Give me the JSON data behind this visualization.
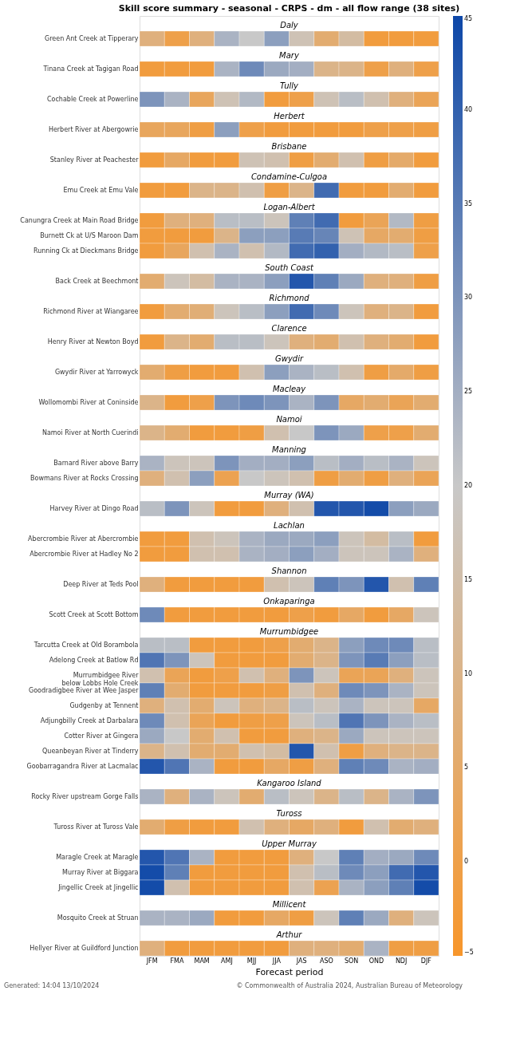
{
  "chart_data": {
    "type": "heatmap",
    "title": "Skill score summary - seasonal - CRPS - dm - all flow range (38 sites)",
    "xlabel": "Forecast period",
    "categories": [
      "JFM",
      "FMA",
      "MAM",
      "AMJ",
      "MJJ",
      "JJA",
      "JAS",
      "ASO",
      "SON",
      "OND",
      "NDJ",
      "DJF"
    ],
    "y_categories": [
      "Daly",
      "Green Ant Creek at Tipperary",
      "Mary",
      "Tinana Creek at Tagigan Road",
      "Tully",
      "Cochable Creek at Powerline",
      "Herbert",
      "Herbert River at Abergowrie",
      "Brisbane",
      "Stanley River at Peachester",
      "Condamine-Culgoa",
      "Emu Creek at Emu Vale",
      "Logan-Albert",
      "Canungra Creek at Main Road Bridge",
      "Burnett Ck at U/S Maroon Dam",
      "Running Ck at Dieckmans Bridge",
      "South Coast",
      "Back Creek at Beechmont",
      "Richmond",
      "Richmond River at Wiangaree",
      "Clarence",
      "Henry River at Newton Boyd",
      "Gwydir",
      "Gwydir River at Yarrowyck",
      "Macleay",
      "Wollomombi River at Coninside",
      "Namoi",
      "Namoi River at North Cuerindi",
      "Manning",
      "Barnard River above Barry",
      "Bowmans River at Rocks Crossing",
      "Murray (WA)",
      "Harvey River at Dingo Road",
      "Lachlan",
      "Abercrombie River at Abercrombie",
      "Abercrombie River at Hadley No 2",
      "Shannon",
      "Deep River at Teds Pool",
      "Onkaparinga",
      "Scott Creek at Scott Bottom",
      "Murrumbidgee",
      "Tarcutta Creek at Old Borambola",
      "Adelong Creek at Batlow Rd",
      "Murrumbidgee River\nbelow Lobbs Hole Creek",
      "Goodradigbee River at Wee Jasper",
      "Gudgenby at Tennent",
      "Adjungbilly Creek at Darbalara",
      "Cotter River at Gingera",
      "Queanbeyan River at Tinderry",
      "Goobarragandra River at Lacmalac",
      "Kangaroo Island",
      "Rocky River upstream Gorge Falls",
      "Tuross",
      "Tuross River at Tuross Vale",
      "Upper Murray",
      "Maragle Creek at Maragle",
      "Murray River at Biggara",
      "Jingellic Creek at Jingellic",
      "Millicent",
      "Mosquito Creek at Struan",
      "Arthur",
      "Hellyer River at Guildford Junction"
    ],
    "cells": [
      [
        null,
        null,
        null,
        null,
        null,
        null,
        null,
        null,
        null,
        null,
        null,
        null
      ],
      [
        8,
        0,
        8,
        24,
        20,
        28,
        17,
        6,
        14,
        -2,
        -2,
        -2
      ],
      [
        null,
        null,
        null,
        null,
        null,
        null,
        null,
        null,
        null,
        null,
        null,
        null
      ],
      [
        -2,
        -2,
        -2,
        24,
        32,
        26,
        25,
        10,
        10,
        0,
        8,
        0
      ],
      [
        null,
        null,
        null,
        null,
        null,
        null,
        null,
        null,
        null,
        null,
        null,
        null
      ],
      [
        30,
        24,
        3,
        17,
        23,
        -2,
        0,
        17,
        22,
        16,
        8,
        2
      ],
      [
        null,
        null,
        null,
        null,
        null,
        null,
        null,
        null,
        null,
        null,
        null,
        null
      ],
      [
        3,
        3,
        -1,
        28,
        0,
        -2,
        -2,
        -2,
        -2,
        0,
        0,
        -1
      ],
      [
        null,
        null,
        null,
        null,
        null,
        null,
        null,
        null,
        null,
        null,
        null,
        null
      ],
      [
        -2,
        4,
        -2,
        -2,
        17,
        16,
        -1,
        6,
        16,
        -1,
        5,
        -2
      ],
      [
        null,
        null,
        null,
        null,
        null,
        null,
        null,
        null,
        null,
        null,
        null,
        null
      ],
      [
        -2,
        -2,
        10,
        10,
        16,
        -1,
        10,
        38,
        -2,
        -2,
        6,
        -2
      ],
      [
        null,
        null,
        null,
        null,
        null,
        null,
        null,
        null,
        null,
        null,
        null,
        null
      ],
      [
        -2,
        8,
        8,
        22,
        22,
        18,
        34,
        38,
        -2,
        2,
        23,
        -1
      ],
      [
        -2,
        -2,
        -2,
        10,
        28,
        28,
        35,
        33,
        17,
        4,
        6,
        -1
      ],
      [
        -2,
        3,
        16,
        24,
        16,
        23,
        38,
        40,
        25,
        23,
        22,
        0
      ],
      [
        null,
        null,
        null,
        null,
        null,
        null,
        null,
        null,
        null,
        null,
        null,
        null
      ],
      [
        6,
        18,
        14,
        24,
        24,
        28,
        42,
        34,
        26,
        8,
        8,
        -1
      ],
      [
        null,
        null,
        null,
        null,
        null,
        null,
        null,
        null,
        null,
        null,
        null,
        null
      ],
      [
        -2,
        6,
        7,
        18,
        22,
        28,
        38,
        32,
        18,
        8,
        10,
        -2
      ],
      [
        null,
        null,
        null,
        null,
        null,
        null,
        null,
        null,
        null,
        null,
        null,
        null
      ],
      [
        -2,
        10,
        6,
        22,
        22,
        18,
        8,
        6,
        16,
        8,
        6,
        -2
      ],
      [
        null,
        null,
        null,
        null,
        null,
        null,
        null,
        null,
        null,
        null,
        null,
        null
      ],
      [
        6,
        -1,
        -2,
        -2,
        16,
        28,
        24,
        22,
        16,
        -1,
        5,
        -1
      ],
      [
        null,
        null,
        null,
        null,
        null,
        null,
        null,
        null,
        null,
        null,
        null,
        null
      ],
      [
        10,
        -2,
        0,
        30,
        32,
        30,
        24,
        30,
        4,
        6,
        2,
        6
      ],
      [
        null,
        null,
        null,
        null,
        null,
        null,
        null,
        null,
        null,
        null,
        null,
        null
      ],
      [
        10,
        6,
        -2,
        -2,
        -1,
        16,
        20,
        30,
        26,
        0,
        0,
        6
      ],
      [
        null,
        null,
        null,
        null,
        null,
        null,
        null,
        null,
        null,
        null,
        null,
        null
      ],
      [
        24,
        18,
        18,
        30,
        25,
        25,
        28,
        22,
        25,
        22,
        24,
        18
      ],
      [
        8,
        16,
        28,
        1,
        20,
        18,
        16,
        -1,
        6,
        -1,
        8,
        2
      ],
      [
        null,
        null,
        null,
        null,
        null,
        null,
        null,
        null,
        null,
        null,
        null,
        null
      ],
      [
        22,
        30,
        18,
        -2,
        -2,
        8,
        16,
        42,
        42,
        44,
        28,
        26
      ],
      [
        null,
        null,
        null,
        null,
        null,
        null,
        null,
        null,
        null,
        null,
        null,
        null
      ],
      [
        -2,
        -2,
        16,
        18,
        24,
        26,
        26,
        28,
        18,
        14,
        22,
        -2
      ],
      [
        -2,
        -2,
        16,
        16,
        24,
        25,
        28,
        25,
        18,
        18,
        24,
        8
      ],
      [
        null,
        null,
        null,
        null,
        null,
        null,
        null,
        null,
        null,
        null,
        null,
        null
      ],
      [
        8,
        -2,
        -2,
        -2,
        -2,
        16,
        18,
        34,
        30,
        42,
        16,
        34
      ],
      [
        null,
        null,
        null,
        null,
        null,
        null,
        null,
        null,
        null,
        null,
        null,
        null
      ],
      [
        32,
        -2,
        -2,
        -2,
        -2,
        -2,
        0,
        -2,
        4,
        -2,
        4,
        18
      ],
      [
        null,
        null,
        null,
        null,
        null,
        null,
        null,
        null,
        null,
        null,
        null,
        null
      ],
      [
        22,
        22,
        -2,
        -2,
        -2,
        0,
        6,
        10,
        28,
        32,
        32,
        22
      ],
      [
        36,
        30,
        18,
        -2,
        -2,
        -2,
        6,
        10,
        30,
        35,
        28,
        22
      ],
      [
        16,
        2,
        -2,
        0,
        16,
        8,
        30,
        18,
        2,
        2,
        8,
        18
      ],
      [
        34,
        6,
        -2,
        -2,
        -2,
        -1,
        16,
        8,
        32,
        30,
        24,
        18
      ],
      [
        8,
        16,
        6,
        18,
        8,
        10,
        22,
        18,
        24,
        18,
        18,
        4
      ],
      [
        32,
        16,
        2,
        -2,
        -1,
        0,
        18,
        22,
        36,
        30,
        24,
        22
      ],
      [
        26,
        20,
        6,
        16,
        -2,
        -2,
        8,
        10,
        26,
        18,
        18,
        18
      ],
      [
        10,
        16,
        6,
        6,
        16,
        14,
        42,
        16,
        -1,
        8,
        10,
        10
      ],
      [
        42,
        36,
        24,
        -2,
        -2,
        4,
        -1,
        8,
        34,
        32,
        24,
        25
      ],
      [
        null,
        null,
        null,
        null,
        null,
        null,
        null,
        null,
        null,
        null,
        null,
        null
      ],
      [
        24,
        8,
        24,
        18,
        6,
        22,
        18,
        10,
        22,
        10,
        24,
        30
      ],
      [
        null,
        null,
        null,
        null,
        null,
        null,
        null,
        null,
        null,
        null,
        null,
        null
      ],
      [
        6,
        -1,
        -2,
        -2,
        16,
        8,
        4,
        8,
        -2,
        16,
        6,
        8
      ],
      [
        null,
        null,
        null,
        null,
        null,
        null,
        null,
        null,
        null,
        null,
        null,
        null
      ],
      [
        42,
        36,
        24,
        -2,
        -2,
        -2,
        8,
        20,
        34,
        25,
        26,
        32
      ],
      [
        44,
        34,
        -2,
        -2,
        -2,
        -2,
        16,
        22,
        32,
        28,
        38,
        42
      ],
      [
        44,
        16,
        -2,
        -2,
        -2,
        -2,
        16,
        1,
        24,
        28,
        34,
        44
      ],
      [
        null,
        null,
        null,
        null,
        null,
        null,
        null,
        null,
        null,
        null,
        null,
        null
      ],
      [
        24,
        24,
        26,
        -2,
        -2,
        4,
        -1,
        18,
        34,
        26,
        8,
        18
      ],
      [
        null,
        null,
        null,
        null,
        null,
        null,
        null,
        null,
        null,
        null,
        null,
        null
      ],
      [
        8,
        -2,
        -2,
        -2,
        -2,
        -2,
        8,
        8,
        6,
        24,
        -1,
        -1
      ]
    ],
    "clim": [
      -5,
      45
    ],
    "cticks": [
      -5,
      0,
      5,
      10,
      15,
      20,
      25,
      30,
      35,
      40,
      45
    ],
    "colors": [
      "#f7962b",
      "#c8c8c8",
      "#0d47a8"
    ],
    "annotations": [
      "Generated: 14:04 13/10/2024",
      "© Commonwealth of Australia 2024, Australian Bureau of Meteorology"
    ]
  }
}
